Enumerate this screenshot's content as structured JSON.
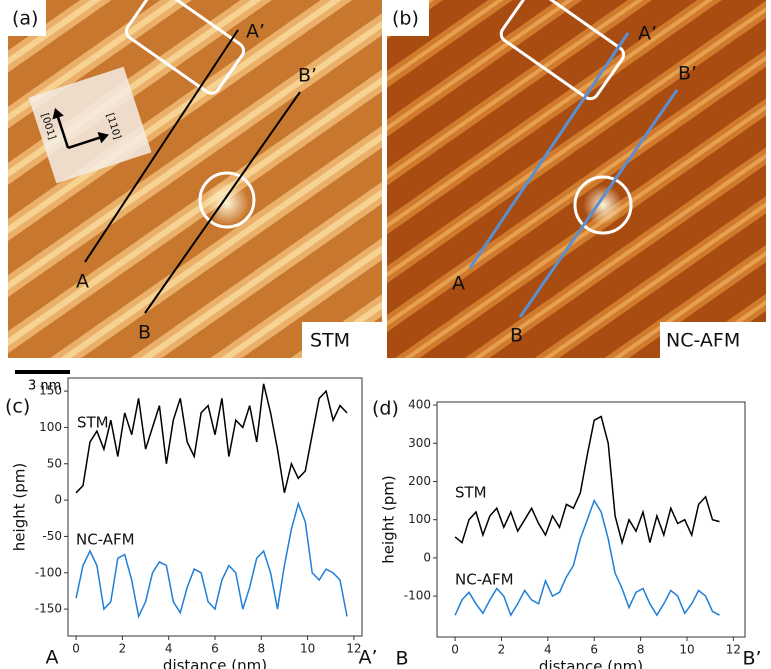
{
  "panels": {
    "a": {
      "label": "(a)",
      "mode": "STM"
    },
    "b": {
      "label": "(b)",
      "mode": "NC-AFM"
    }
  },
  "markers": {
    "a_start": "A",
    "a_end": "A’",
    "b_start": "B",
    "b_end": "B’"
  },
  "directions": [
    "[001]",
    "[110]"
  ],
  "scale_bar": "3 nm",
  "chart_data": [
    {
      "type": "line",
      "label": "(c)",
      "xlabel": "distance (nm)",
      "ylabel": "height (pm)",
      "x": [
        0,
        0.3,
        0.6,
        0.9,
        1.2,
        1.5,
        1.8,
        2.1,
        2.4,
        2.7,
        3,
        3.3,
        3.6,
        3.9,
        4.2,
        4.5,
        4.8,
        5.1,
        5.4,
        5.7,
        6,
        6.3,
        6.6,
        6.9,
        7.2,
        7.5,
        7.8,
        8.1,
        8.4,
        8.7,
        9,
        9.3,
        9.6,
        9.9,
        10.2,
        10.5,
        10.8,
        11.1,
        11.4,
        11.7
      ],
      "xlim": [
        -0.35,
        12.35
      ],
      "xticks": [
        0,
        2,
        4,
        6,
        8,
        10,
        12
      ],
      "ylim": [
        -187,
        168
      ],
      "yticks": [
        -150,
        -100,
        -50,
        0,
        50,
        100,
        150
      ],
      "series": [
        {
          "name": "STM",
          "color": "#000000",
          "values": [
            10,
            20,
            80,
            95,
            70,
            110,
            60,
            120,
            90,
            140,
            70,
            100,
            130,
            50,
            110,
            140,
            80,
            60,
            120,
            130,
            90,
            140,
            60,
            110,
            100,
            130,
            80,
            160,
            120,
            70,
            10,
            50,
            30,
            40,
            90,
            140,
            150,
            110,
            130,
            120
          ]
        },
        {
          "name": "NC-AFM",
          "color": "#1f7fd8",
          "values": [
            -135,
            -90,
            -70,
            -90,
            -150,
            -140,
            -80,
            -75,
            -110,
            -160,
            -140,
            -100,
            -85,
            -90,
            -140,
            -155,
            -120,
            -95,
            -100,
            -140,
            -150,
            -110,
            -90,
            -100,
            -150,
            -120,
            -80,
            -70,
            -100,
            -150,
            -90,
            -40,
            -5,
            -30,
            -100,
            -110,
            -95,
            -100,
            -110,
            -160
          ]
        }
      ]
    },
    {
      "type": "line",
      "label": "(d)",
      "xlabel": "distance (nm)",
      "ylabel": "height (pm)",
      "x": [
        0,
        0.3,
        0.6,
        0.9,
        1.2,
        1.5,
        1.8,
        2.1,
        2.4,
        2.7,
        3,
        3.3,
        3.6,
        3.9,
        4.2,
        4.5,
        4.8,
        5.1,
        5.4,
        5.7,
        6,
        6.3,
        6.6,
        6.9,
        7.2,
        7.5,
        7.8,
        8.1,
        8.4,
        8.7,
        9,
        9.3,
        9.6,
        9.9,
        10.2,
        10.5,
        10.8,
        11.1,
        11.4
      ],
      "xlim": [
        -0.78,
        12.5
      ],
      "xticks": [
        0,
        2,
        4,
        6,
        8,
        10,
        12
      ],
      "ylim": [
        -207,
        408
      ],
      "yticks": [
        -100,
        0,
        100,
        200,
        300,
        400
      ],
      "series": [
        {
          "name": "STM",
          "color": "#000000",
          "values": [
            55,
            40,
            100,
            120,
            60,
            110,
            130,
            80,
            120,
            70,
            100,
            130,
            90,
            60,
            110,
            80,
            140,
            130,
            170,
            270,
            360,
            370,
            300,
            110,
            40,
            100,
            70,
            120,
            40,
            110,
            60,
            130,
            90,
            100,
            60,
            140,
            160,
            100,
            95
          ]
        },
        {
          "name": "NC-AFM",
          "color": "#1f7fd8",
          "values": [
            -150,
            -110,
            -90,
            -120,
            -145,
            -110,
            -80,
            -100,
            -150,
            -120,
            -85,
            -110,
            -120,
            -60,
            -100,
            -90,
            -50,
            -20,
            50,
            100,
            150,
            120,
            50,
            -40,
            -80,
            -130,
            -90,
            -80,
            -120,
            -150,
            -120,
            -85,
            -100,
            -145,
            -120,
            -85,
            -100,
            -140,
            -150
          ]
        }
      ]
    }
  ]
}
